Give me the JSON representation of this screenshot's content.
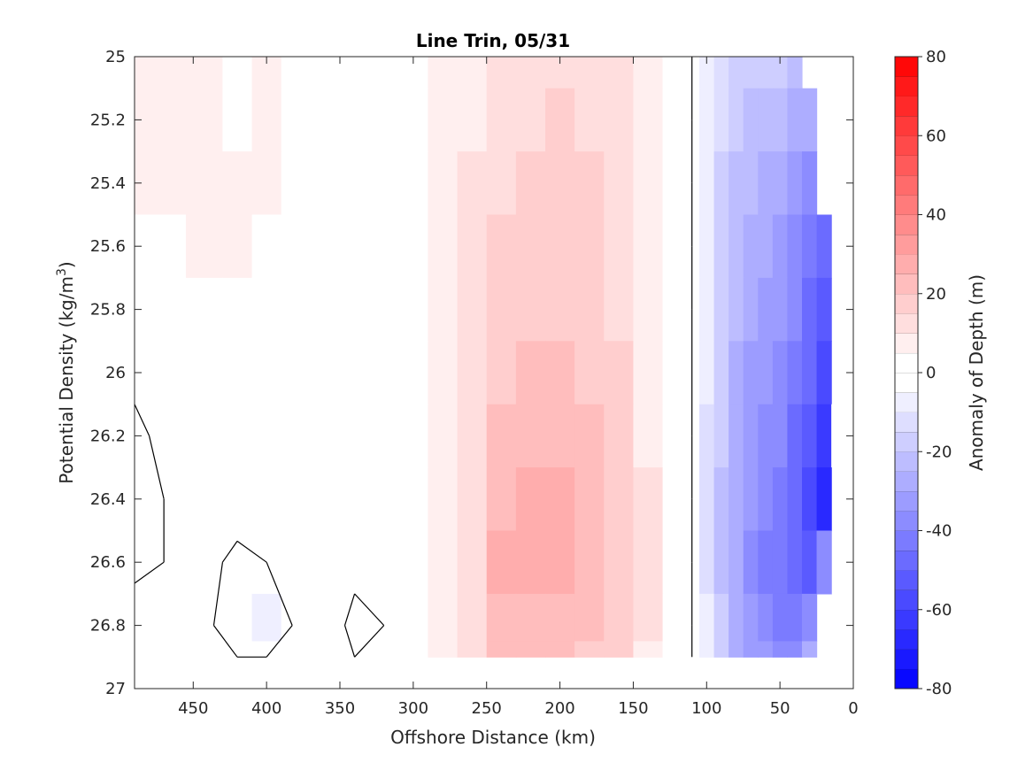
{
  "chart_data": {
    "type": "heatmap",
    "title": "Line Trin, 05/31",
    "xlabel": "Offshore Distance (km)",
    "ylabel_main": "Potential Density (kg/m",
    "ylabel_sup": "3",
    "ylabel_close": ")",
    "xlim": [
      0,
      490
    ],
    "x_reversed": true,
    "ylim": [
      25,
      27
    ],
    "y_reversed": true,
    "x_ticks": [
      450,
      400,
      350,
      300,
      250,
      200,
      150,
      100,
      50,
      0
    ],
    "x_tick_labels": [
      "450",
      "400",
      "350",
      "300",
      "250",
      "200",
      "150",
      "100",
      "50",
      "0"
    ],
    "y_ticks": [
      25,
      25.2,
      25.4,
      25.6,
      25.8,
      26,
      26.2,
      26.4,
      26.6,
      26.8,
      27
    ],
    "y_tick_labels": [
      "25",
      "25.2",
      "25.4",
      "25.6",
      "25.8",
      "26",
      "26.2",
      "26.4",
      "26.6",
      "26.8",
      "27"
    ],
    "colorbar": {
      "label": "Anomaly of Depth (m)",
      "range": [
        -80,
        80
      ],
      "step": 5,
      "ticks": [
        80,
        60,
        40,
        20,
        0,
        -20,
        -40,
        -60,
        -80
      ],
      "tick_labels": [
        "80",
        "60",
        "40",
        "20",
        "0",
        "-20",
        "-40",
        "-60",
        "-80"
      ],
      "colormap": "blue-white-red",
      "low_color": "#0000ff",
      "mid_color": "#ffffff",
      "high_color": "#ff0000"
    },
    "contour_levels": [
      0
    ],
    "data_bounds": {
      "density_max": 26.9
    },
    "x": [
      490,
      470,
      440,
      420,
      400,
      380,
      360,
      340,
      320,
      300,
      280,
      260,
      240,
      220,
      200,
      180,
      160,
      140,
      120,
      110,
      100,
      90,
      80,
      70,
      60,
      50,
      40,
      30,
      20,
      10
    ],
    "y": [
      25.0,
      25.2,
      25.4,
      25.6,
      25.8,
      26.0,
      26.2,
      26.4,
      26.6,
      26.8,
      26.9
    ],
    "anomaly_m": [
      [
        6,
        7,
        5,
        4,
        5,
        3,
        1,
        0,
        0,
        1,
        5,
        9,
        12,
        13,
        13,
        12,
        10,
        6,
        2,
        0,
        -7,
        -12,
        -16,
        -18,
        -20,
        -20,
        -22,
        null,
        null,
        null
      ],
      [
        6,
        6,
        5,
        4,
        6,
        4,
        2,
        0,
        0,
        1,
        5,
        9,
        13,
        14,
        15,
        14,
        11,
        7,
        2,
        0,
        -8,
        -14,
        -18,
        -21,
        -24,
        -24,
        -26,
        -30,
        null,
        null
      ],
      [
        5,
        5,
        5,
        5,
        5,
        4,
        3,
        1,
        0,
        1,
        5,
        10,
        14,
        16,
        17,
        15,
        12,
        7,
        2,
        0,
        -9,
        -16,
        -21,
        -24,
        -27,
        -29,
        -31,
        -37,
        null,
        null
      ],
      [
        4,
        4,
        5,
        5,
        4,
        4,
        4,
        1,
        0,
        2,
        6,
        10,
        15,
        17,
        19,
        16,
        13,
        8,
        2,
        0,
        -9,
        -17,
        -23,
        -27,
        -30,
        -33,
        -36,
        -43,
        -48,
        null
      ],
      [
        3,
        3,
        4,
        4,
        3,
        3,
        3,
        1,
        0,
        2,
        6,
        11,
        17,
        19,
        19,
        17,
        14,
        8,
        2,
        0,
        -10,
        -18,
        -24,
        -28,
        -32,
        -35,
        -39,
        -46,
        -52,
        null
      ],
      [
        1,
        2,
        3,
        2,
        2,
        2,
        2,
        1,
        0,
        2,
        6,
        12,
        18,
        21,
        21,
        19,
        15,
        9,
        3,
        0,
        -10,
        -19,
        -26,
        -31,
        -34,
        -37,
        -43,
        -50,
        -58,
        null
      ],
      [
        -1,
        1,
        2,
        3,
        3,
        2,
        2,
        1,
        0,
        2,
        7,
        13,
        20,
        23,
        22,
        21,
        16,
        9,
        3,
        0,
        -11,
        -20,
        -27,
        -33,
        -37,
        -40,
        -46,
        -55,
        -64,
        -2
      ],
      [
        -2,
        0,
        1,
        2,
        2,
        2,
        2,
        1,
        0,
        2,
        7,
        14,
        24,
        25,
        25,
        24,
        17,
        10,
        3,
        0,
        -11,
        -21,
        -28,
        -34,
        -40,
        -44,
        -50,
        -60,
        -66,
        null
      ],
      [
        -1,
        0,
        1,
        -1,
        0,
        2,
        2,
        1,
        0,
        2,
        7,
        14,
        25,
        26,
        26,
        24,
        18,
        10,
        3,
        0,
        -11,
        -21,
        -29,
        -36,
        -42,
        -45,
        -48,
        -52,
        -40,
        null
      ],
      [
        2,
        2,
        1,
        -4,
        -7,
        1,
        2,
        -1,
        0,
        2,
        7,
        14,
        22,
        23,
        22,
        21,
        17,
        10,
        3,
        0,
        -10,
        -20,
        -28,
        -34,
        -40,
        -42,
        -44,
        -40,
        null,
        null
      ],
      [
        4,
        4,
        2,
        0,
        0,
        1,
        1,
        0,
        0,
        2,
        7,
        13,
        20,
        21,
        20,
        19,
        16,
        9,
        3,
        0,
        -10,
        -19,
        -26,
        -31,
        -35,
        -37,
        -38,
        -30,
        null,
        null
      ]
    ]
  }
}
